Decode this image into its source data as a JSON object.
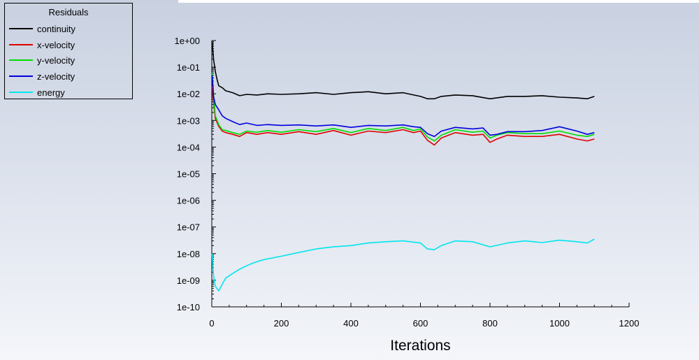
{
  "chart_data": {
    "type": "line",
    "title": "",
    "xlabel": "Iterations",
    "ylabel": "",
    "yscale": "log",
    "xlim": [
      0,
      1200
    ],
    "ylim": [
      1e-10,
      1
    ],
    "grid": false,
    "legend": {
      "title": "Residuals",
      "placement": "top-left"
    },
    "x_ticks": [
      {
        "value": 0,
        "label": "0"
      },
      {
        "value": 200,
        "label": "200"
      },
      {
        "value": 400,
        "label": "400"
      },
      {
        "value": 600,
        "label": "600"
      },
      {
        "value": 800,
        "label": "800"
      },
      {
        "value": 1000,
        "label": "1000"
      },
      {
        "value": 1200,
        "label": "1200"
      }
    ],
    "y_ticks": [
      {
        "value": 1,
        "label": "1e+00"
      },
      {
        "value": 0.1,
        "label": "1e-01"
      },
      {
        "value": 0.01,
        "label": "1e-02"
      },
      {
        "value": 0.001,
        "label": "1e-03"
      },
      {
        "value": 0.0001,
        "label": "1e-04"
      },
      {
        "value": 1e-05,
        "label": "1e-05"
      },
      {
        "value": 1e-06,
        "label": "1e-06"
      },
      {
        "value": 1e-07,
        "label": "1e-07"
      },
      {
        "value": 1e-08,
        "label": "1e-08"
      },
      {
        "value": 1e-09,
        "label": "1e-09"
      },
      {
        "value": 1e-10,
        "label": "1e-10"
      }
    ],
    "series": [
      {
        "name": "continuity",
        "color": "#000000",
        "x": [
          1,
          5,
          10,
          15,
          20,
          30,
          40,
          60,
          80,
          100,
          130,
          160,
          200,
          250,
          300,
          350,
          400,
          450,
          500,
          550,
          600,
          620,
          640,
          660,
          700,
          750,
          800,
          850,
          900,
          950,
          1000,
          1050,
          1080,
          1100
        ],
        "y": [
          0.9,
          0.2,
          0.07,
          0.035,
          0.02,
          0.017,
          0.013,
          0.011,
          0.0085,
          0.0095,
          0.009,
          0.01,
          0.0095,
          0.01,
          0.011,
          0.0095,
          0.011,
          0.012,
          0.01,
          0.011,
          0.008,
          0.0065,
          0.0065,
          0.008,
          0.009,
          0.0085,
          0.0065,
          0.008,
          0.008,
          0.0085,
          0.0075,
          0.007,
          0.0065,
          0.008
        ]
      },
      {
        "name": "x-velocity",
        "color": "#e00000",
        "x": [
          1,
          5,
          10,
          20,
          30,
          40,
          60,
          80,
          100,
          130,
          160,
          200,
          250,
          300,
          350,
          400,
          450,
          500,
          550,
          580,
          600,
          620,
          640,
          660,
          700,
          750,
          780,
          800,
          820,
          850,
          900,
          950,
          1000,
          1050,
          1080,
          1100
        ],
        "y": [
          0.02,
          0.005,
          0.0012,
          0.0006,
          0.0004,
          0.00035,
          0.0003,
          0.00025,
          0.00035,
          0.0003,
          0.00035,
          0.0003,
          0.00038,
          0.0003,
          0.00042,
          0.00028,
          0.0004,
          0.00035,
          0.00045,
          0.00035,
          0.0004,
          0.00018,
          0.00012,
          0.00022,
          0.00035,
          0.00028,
          0.0003,
          0.00015,
          0.0002,
          0.00028,
          0.00025,
          0.00025,
          0.0003,
          0.0002,
          0.00017,
          0.0002
        ]
      },
      {
        "name": "y-velocity",
        "color": "#00dd00",
        "x": [
          1,
          5,
          10,
          20,
          30,
          40,
          60,
          80,
          100,
          130,
          160,
          200,
          250,
          300,
          350,
          400,
          450,
          500,
          550,
          580,
          600,
          620,
          640,
          660,
          700,
          750,
          780,
          800,
          820,
          850,
          900,
          950,
          1000,
          1050,
          1080,
          1100
        ],
        "y": [
          0.06,
          0.01,
          0.0015,
          0.0007,
          0.00045,
          0.00042,
          0.00035,
          0.0003,
          0.0004,
          0.00036,
          0.00042,
          0.00036,
          0.00045,
          0.00038,
          0.0005,
          0.00035,
          0.0005,
          0.00042,
          0.00055,
          0.00042,
          0.00048,
          0.00024,
          0.00017,
          0.00028,
          0.00045,
          0.00036,
          0.0004,
          0.00022,
          0.00028,
          0.00035,
          0.00032,
          0.00032,
          0.0004,
          0.00028,
          0.00025,
          0.0003
        ]
      },
      {
        "name": "z-velocity",
        "color": "#0000dd",
        "x": [
          1,
          5,
          10,
          20,
          30,
          40,
          60,
          80,
          100,
          130,
          160,
          200,
          250,
          300,
          350,
          400,
          450,
          500,
          550,
          580,
          600,
          620,
          640,
          660,
          700,
          750,
          780,
          800,
          820,
          850,
          900,
          950,
          1000,
          1050,
          1080,
          1100
        ],
        "y": [
          0.05,
          0.008,
          0.004,
          0.0025,
          0.0015,
          0.0012,
          0.0009,
          0.0007,
          0.0008,
          0.00065,
          0.0007,
          0.00065,
          0.00068,
          0.00062,
          0.00068,
          0.00055,
          0.00065,
          0.00062,
          0.00068,
          0.00058,
          0.00055,
          0.00032,
          0.00025,
          0.0004,
          0.00055,
          0.00048,
          0.00052,
          0.00028,
          0.0003,
          0.00038,
          0.00038,
          0.00042,
          0.00058,
          0.0004,
          0.0003,
          0.00035
        ]
      },
      {
        "name": "energy",
        "color": "#00e5ee",
        "x": [
          1,
          5,
          10,
          20,
          30,
          40,
          60,
          80,
          100,
          120,
          150,
          200,
          250,
          300,
          350,
          400,
          450,
          500,
          550,
          600,
          620,
          640,
          660,
          700,
          750,
          800,
          850,
          900,
          950,
          1000,
          1050,
          1080,
          1100
        ],
        "y": [
          1e-08,
          1.5e-09,
          6e-10,
          4e-10,
          7e-10,
          1.2e-09,
          1.8e-09,
          2.6e-09,
          3.5e-09,
          4.5e-09,
          6e-09,
          8e-09,
          1.1e-08,
          1.5e-08,
          1.8e-08,
          2e-08,
          2.5e-08,
          2.8e-08,
          3e-08,
          2.5e-08,
          1.5e-08,
          1.4e-08,
          2e-08,
          3e-08,
          2.8e-08,
          1.8e-08,
          2.5e-08,
          3e-08,
          2.6e-08,
          3.2e-08,
          2.8e-08,
          2.5e-08,
          3.5e-08
        ]
      }
    ]
  }
}
